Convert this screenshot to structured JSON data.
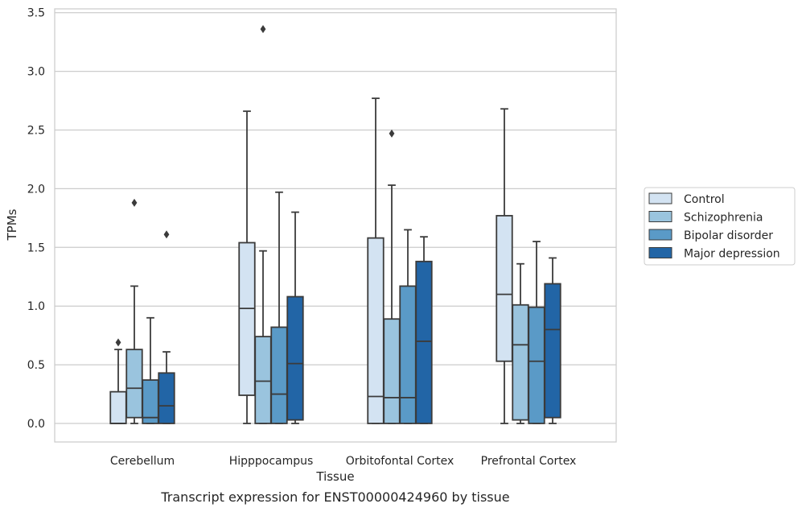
{
  "chart_data": {
    "type": "box",
    "xlabel": "Tissue",
    "ylabel": "TPMs",
    "ylim": [
      -0.16,
      3.55
    ],
    "yticks": [
      "0.0",
      "0.5",
      "1.0",
      "1.5",
      "2.0",
      "2.5",
      "3.0",
      "3.5"
    ],
    "grid": "horizontal",
    "legend_placement": "right",
    "categories": [
      "Cerebellum",
      "Hipppocampus",
      "Orbitofontal Cortex",
      "Prefrontal Cortex"
    ],
    "series": [
      {
        "name": "Control",
        "color": "#d3e3f2",
        "boxes": [
          {
            "whislo": 0.0,
            "q1": 0.0,
            "med": 0.0,
            "q3": 0.27,
            "whishi": 0.63,
            "fliers": [
              0.69
            ]
          },
          {
            "whislo": 0.0,
            "q1": 0.24,
            "med": 0.98,
            "q3": 1.54,
            "whishi": 2.66,
            "fliers": []
          },
          {
            "whislo": 0.0,
            "q1": 0.0,
            "med": 0.23,
            "q3": 1.58,
            "whishi": 2.77,
            "fliers": []
          },
          {
            "whislo": 0.0,
            "q1": 0.53,
            "med": 1.1,
            "q3": 1.77,
            "whishi": 2.68,
            "fliers": []
          }
        ]
      },
      {
        "name": "Schizophrenia",
        "color": "#9ac4de",
        "boxes": [
          {
            "whislo": 0.0,
            "q1": 0.05,
            "med": 0.3,
            "q3": 0.63,
            "whishi": 1.17,
            "fliers": [
              1.88
            ]
          },
          {
            "whislo": 0.0,
            "q1": 0.0,
            "med": 0.36,
            "q3": 0.74,
            "whishi": 1.47,
            "fliers": [
              3.36
            ]
          },
          {
            "whislo": 0.0,
            "q1": 0.0,
            "med": 0.22,
            "q3": 0.89,
            "whishi": 2.03,
            "fliers": [
              2.47
            ]
          },
          {
            "whislo": 0.0,
            "q1": 0.03,
            "med": 0.67,
            "q3": 1.01,
            "whishi": 1.36,
            "fliers": []
          }
        ]
      },
      {
        "name": "Bipolar disorder",
        "color": "#5a9ac7",
        "boxes": [
          {
            "whislo": 0.0,
            "q1": 0.0,
            "med": 0.05,
            "q3": 0.37,
            "whishi": 0.9,
            "fliers": []
          },
          {
            "whislo": 0.0,
            "q1": 0.0,
            "med": 0.25,
            "q3": 0.82,
            "whishi": 1.97,
            "fliers": []
          },
          {
            "whislo": 0.0,
            "q1": 0.0,
            "med": 0.22,
            "q3": 1.17,
            "whishi": 1.65,
            "fliers": []
          },
          {
            "whislo": 0.0,
            "q1": 0.0,
            "med": 0.53,
            "q3": 0.99,
            "whishi": 1.55,
            "fliers": []
          }
        ]
      },
      {
        "name": "Major depression",
        "color": "#2265a6",
        "boxes": [
          {
            "whislo": 0.0,
            "q1": 0.0,
            "med": 0.15,
            "q3": 0.43,
            "whishi": 0.61,
            "fliers": [
              1.61
            ]
          },
          {
            "whislo": 0.0,
            "q1": 0.03,
            "med": 0.51,
            "q3": 1.08,
            "whishi": 1.8,
            "fliers": []
          },
          {
            "whislo": 0.0,
            "q1": 0.0,
            "med": 0.7,
            "q3": 1.38,
            "whishi": 1.59,
            "fliers": []
          },
          {
            "whislo": 0.0,
            "q1": 0.05,
            "med": 0.8,
            "q3": 1.19,
            "whishi": 1.41,
            "fliers": []
          }
        ]
      }
    ],
    "caption": "Transcript expression for ENST00000424960 by tissue"
  }
}
